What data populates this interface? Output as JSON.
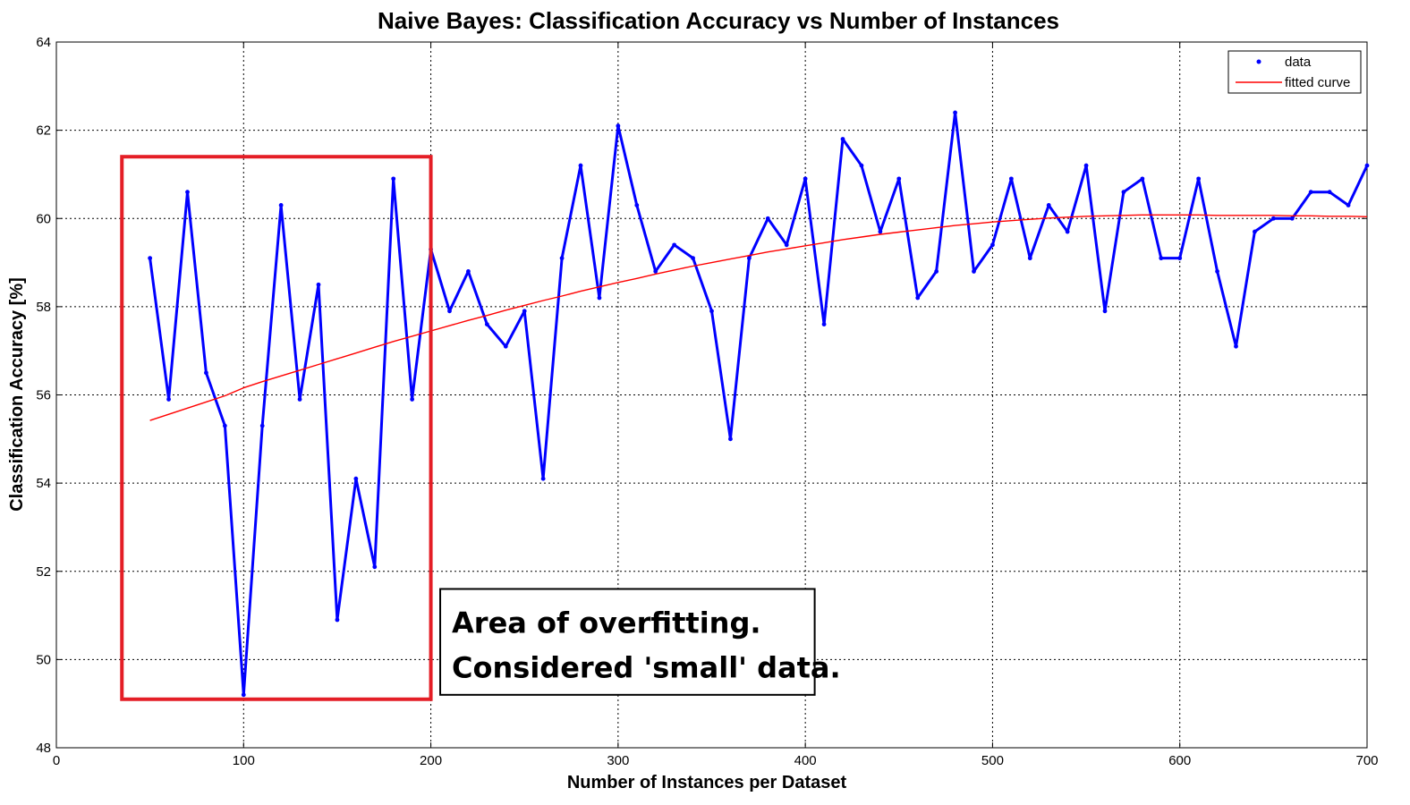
{
  "chart_data": {
    "type": "line",
    "title": "Naive Bayes: Classification Accuracy vs Number of Instances",
    "xlabel": "Number of Instances per Dataset",
    "ylabel": "Classification Accuracy [%]",
    "xlim": [
      0,
      700
    ],
    "ylim": [
      48,
      64
    ],
    "xticks": [
      0,
      100,
      200,
      300,
      400,
      500,
      600,
      700
    ],
    "yticks": [
      48,
      50,
      52,
      54,
      56,
      58,
      60,
      62,
      64
    ],
    "grid": true,
    "grid_style": "dotted",
    "legend_position": "top-right",
    "series": [
      {
        "name": "data",
        "style": "line-with-point-markers",
        "color": "#0000ff",
        "x": [
          50,
          60,
          70,
          80,
          90,
          100,
          110,
          120,
          130,
          140,
          150,
          160,
          170,
          180,
          190,
          200,
          210,
          220,
          230,
          240,
          250,
          260,
          270,
          280,
          290,
          300,
          310,
          320,
          330,
          340,
          350,
          360,
          370,
          380,
          390,
          400,
          410,
          420,
          430,
          440,
          450,
          460,
          470,
          480,
          490,
          500,
          510,
          520,
          530,
          540,
          550,
          560,
          570,
          580,
          590,
          600,
          610,
          620,
          630,
          640,
          650,
          660,
          670,
          680,
          690,
          700
        ],
        "y": [
          59.1,
          55.9,
          60.6,
          56.5,
          55.3,
          49.2,
          55.3,
          60.3,
          55.9,
          58.5,
          50.9,
          54.1,
          52.1,
          60.9,
          55.9,
          59.3,
          57.9,
          58.8,
          57.6,
          57.1,
          57.9,
          54.1,
          59.1,
          61.2,
          58.2,
          62.1,
          60.3,
          58.8,
          59.4,
          59.1,
          57.9,
          55.0,
          59.1,
          60.0,
          59.4,
          60.9,
          57.6,
          61.8,
          61.2,
          59.7,
          60.9,
          58.2,
          58.8,
          62.4,
          58.8,
          59.4,
          60.9,
          59.1,
          60.3,
          59.7,
          61.2,
          57.9,
          60.6,
          60.9,
          59.1,
          59.1,
          60.9,
          58.8,
          57.1,
          59.7,
          60.0,
          60.0,
          60.6,
          60.6,
          60.3,
          61.2
        ]
      },
      {
        "name": "fitted curve",
        "style": "line",
        "color": "#ff0000",
        "x": [
          50,
          60,
          70,
          80,
          90,
          100,
          110,
          120,
          130,
          140,
          150,
          160,
          170,
          180,
          190,
          200,
          210,
          220,
          230,
          240,
          250,
          260,
          270,
          280,
          290,
          300,
          310,
          320,
          330,
          340,
          350,
          360,
          370,
          380,
          390,
          400,
          410,
          420,
          430,
          440,
          450,
          460,
          470,
          480,
          490,
          500,
          510,
          520,
          530,
          540,
          550,
          560,
          570,
          580,
          590,
          600,
          610,
          620,
          630,
          640,
          650,
          660,
          670,
          680,
          690,
          700
        ],
        "y": [
          55.42,
          55.56,
          55.7,
          55.84,
          55.98,
          56.16,
          56.3,
          56.43,
          56.56,
          56.69,
          56.82,
          56.95,
          57.08,
          57.21,
          57.33,
          57.45,
          57.57,
          57.69,
          57.8,
          57.92,
          58.03,
          58.14,
          58.24,
          58.35,
          58.45,
          58.55,
          58.64,
          58.74,
          58.83,
          58.92,
          59.0,
          59.08,
          59.16,
          59.24,
          59.31,
          59.38,
          59.45,
          59.52,
          59.58,
          59.64,
          59.69,
          59.74,
          59.79,
          59.84,
          59.88,
          59.92,
          59.95,
          59.98,
          60.01,
          60.03,
          60.05,
          60.06,
          60.07,
          60.08,
          60.08,
          60.08,
          60.08,
          60.07,
          60.07,
          60.07,
          60.07,
          60.06,
          60.06,
          60.05,
          60.05,
          60.04
        ]
      }
    ],
    "annotations": [
      {
        "type": "highlight-box",
        "color": "#e41e26",
        "x_range": [
          35,
          200
        ],
        "y_range": [
          49.1,
          61.4
        ]
      },
      {
        "type": "text-box",
        "lines": [
          "Area of overfitting.",
          "Considered 'small' data."
        ],
        "x_range": [
          205,
          405
        ],
        "y_range": [
          49.2,
          51.6
        ]
      }
    ]
  }
}
